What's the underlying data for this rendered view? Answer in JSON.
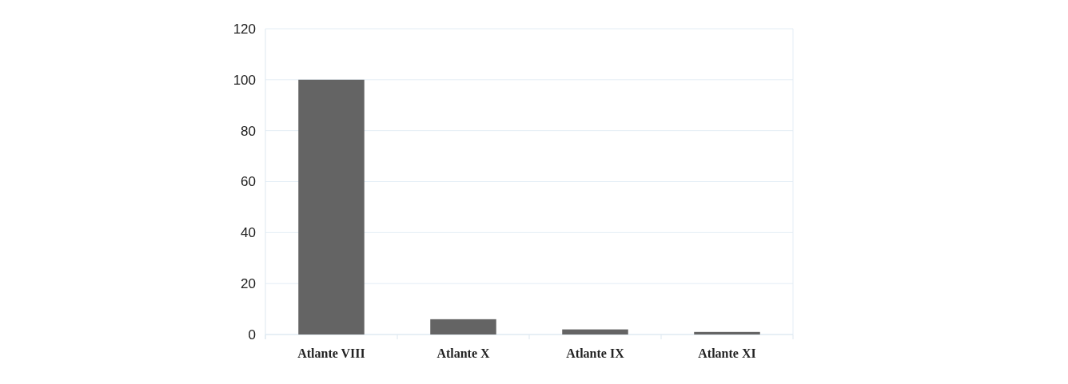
{
  "chart_data": {
    "type": "bar",
    "categories": [
      "Atlante VIII",
      "Atlante X",
      "Atlante IX",
      "Atlante XI"
    ],
    "values": [
      100,
      6,
      2,
      1
    ],
    "color": "#646464",
    "ylim": [
      0,
      120
    ],
    "yticks": [
      0,
      20,
      40,
      60,
      80,
      100,
      120
    ],
    "grid": "y"
  }
}
